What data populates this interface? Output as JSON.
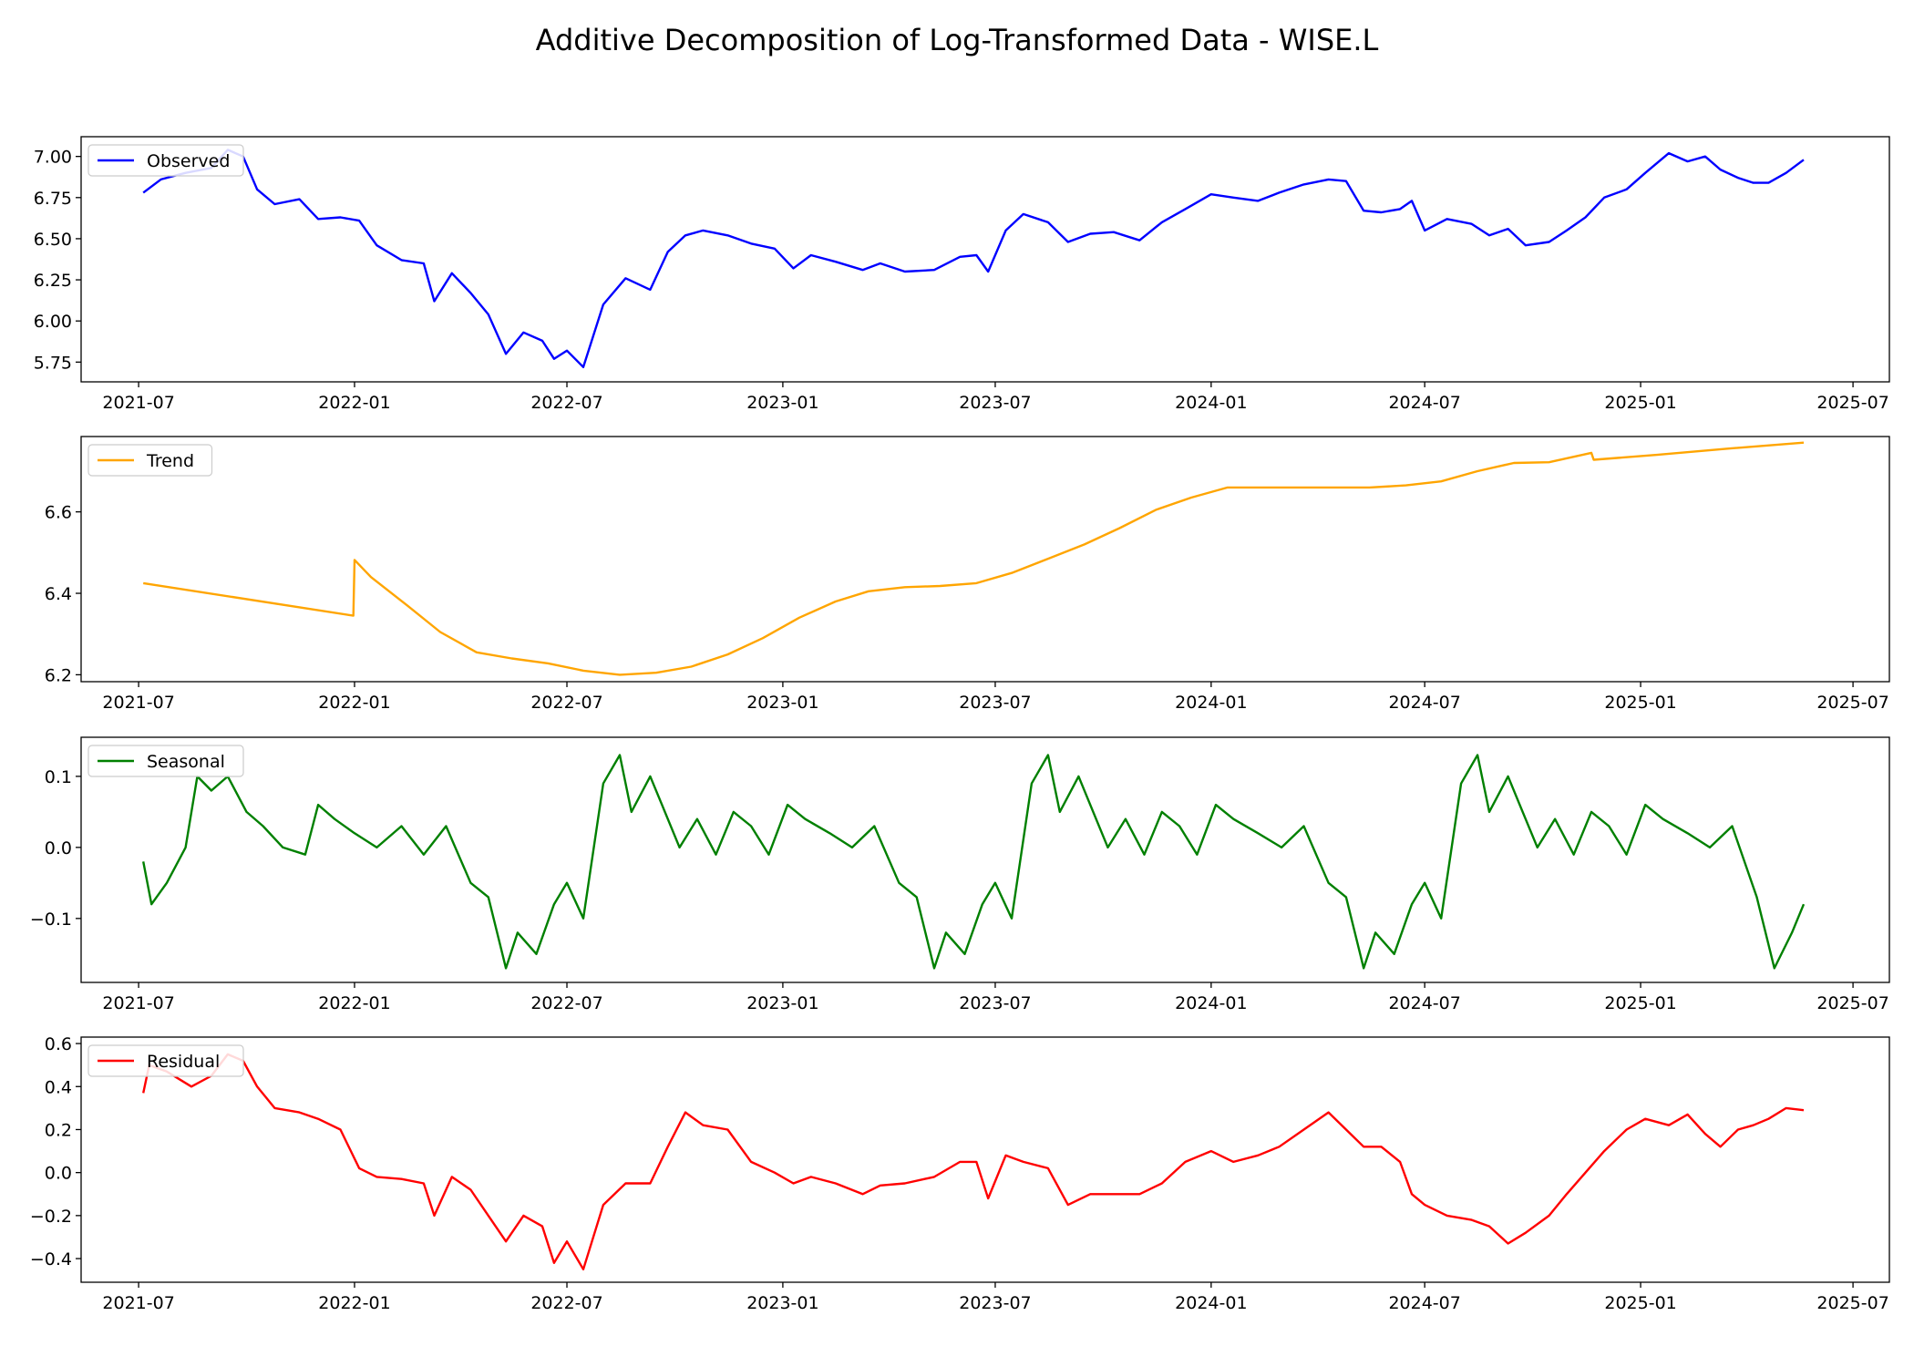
{
  "title": "Additive Decomposition of Log-Transformed Data - WISE.L",
  "chart_data": [
    {
      "type": "line",
      "legend": "Observed",
      "legend_position": "upper left",
      "color": "#0000ff",
      "ylim": [
        5.63,
        7.12
      ],
      "yticks": [
        5.75,
        6.0,
        6.25,
        6.5,
        6.75,
        7.0
      ],
      "ytick_labels": [
        "5.75",
        "6.00",
        "6.25",
        "6.50",
        "6.75",
        "7.00"
      ],
      "x": [
        "2021-07-05",
        "2021-07-20",
        "2021-08-10",
        "2021-09-01",
        "2021-09-15",
        "2021-09-28",
        "2021-10-10",
        "2021-10-25",
        "2021-11-15",
        "2021-12-01",
        "2021-12-20",
        "2022-01-05",
        "2022-01-20",
        "2022-02-10",
        "2022-03-01",
        "2022-03-10",
        "2022-03-25",
        "2022-04-10",
        "2022-04-25",
        "2022-05-10",
        "2022-05-25",
        "2022-06-10",
        "2022-06-20",
        "2022-07-01",
        "2022-07-15",
        "2022-08-01",
        "2022-08-20",
        "2022-09-10",
        "2022-09-25",
        "2022-10-10",
        "2022-10-25",
        "2022-11-15",
        "2022-12-05",
        "2022-12-25",
        "2023-01-10",
        "2023-01-25",
        "2023-02-15",
        "2023-03-10",
        "2023-03-25",
        "2023-04-15",
        "2023-05-10",
        "2023-06-01",
        "2023-06-15",
        "2023-06-25",
        "2023-07-10",
        "2023-07-25",
        "2023-08-15",
        "2023-09-01",
        "2023-09-20",
        "2023-10-10",
        "2023-11-01",
        "2023-11-20",
        "2023-12-10",
        "2024-01-01",
        "2024-01-20",
        "2024-02-10",
        "2024-02-28",
        "2024-03-20",
        "2024-04-10",
        "2024-04-25",
        "2024-05-10",
        "2024-05-25",
        "2024-06-10",
        "2024-06-20",
        "2024-07-01",
        "2024-07-20",
        "2024-08-10",
        "2024-08-25",
        "2024-09-10",
        "2024-09-25",
        "2024-10-15",
        "2024-10-30",
        "2024-11-15",
        "2024-12-01",
        "2024-12-20",
        "2025-01-05",
        "2025-01-25",
        "2025-02-10",
        "2025-02-25",
        "2025-03-10",
        "2025-03-25",
        "2025-04-07",
        "2025-04-20",
        "2025-05-05",
        "2025-05-20"
      ],
      "values": [
        6.78,
        6.86,
        6.9,
        6.93,
        7.04,
        7.0,
        6.8,
        6.71,
        6.74,
        6.62,
        6.63,
        6.61,
        6.46,
        6.37,
        6.35,
        6.12,
        6.29,
        6.17,
        6.04,
        5.8,
        5.93,
        5.88,
        5.77,
        5.82,
        5.72,
        6.1,
        6.26,
        6.19,
        6.42,
        6.52,
        6.55,
        6.52,
        6.47,
        6.44,
        6.32,
        6.4,
        6.36,
        6.31,
        6.35,
        6.3,
        6.31,
        6.39,
        6.4,
        6.3,
        6.55,
        6.65,
        6.6,
        6.48,
        6.53,
        6.54,
        6.49,
        6.6,
        6.68,
        6.77,
        6.75,
        6.73,
        6.78,
        6.83,
        6.86,
        6.85,
        6.67,
        6.66,
        6.68,
        6.73,
        6.55,
        6.62,
        6.59,
        6.52,
        6.56,
        6.46,
        6.48,
        6.55,
        6.63,
        6.75,
        6.8,
        6.9,
        7.02,
        6.97,
        7.0,
        6.92,
        6.87,
        6.84,
        6.84,
        6.9,
        6.98
      ]
    },
    {
      "type": "line",
      "legend": "Trend",
      "legend_position": "upper left",
      "color": "#ffa500",
      "ylim": [
        6.183,
        6.785
      ],
      "yticks": [
        6.2,
        6.4,
        6.6
      ],
      "ytick_labels": [
        "6.2",
        "6.4",
        "6.6"
      ],
      "x": [
        "2021-07-05",
        "2021-12-31",
        "2022-01-01",
        "2022-01-15",
        "2022-02-15",
        "2022-03-15",
        "2022-04-15",
        "2022-05-15",
        "2022-06-15",
        "2022-07-15",
        "2022-08-15",
        "2022-09-15",
        "2022-10-15",
        "2022-11-15",
        "2022-12-15",
        "2023-01-15",
        "2023-02-15",
        "2023-03-15",
        "2023-04-15",
        "2023-05-15",
        "2023-06-15",
        "2023-07-15",
        "2023-08-15",
        "2023-09-15",
        "2023-10-15",
        "2023-11-15",
        "2023-12-15",
        "2024-01-15",
        "2024-02-15",
        "2024-03-15",
        "2024-04-15",
        "2024-05-15",
        "2024-06-15",
        "2024-07-15",
        "2024-08-15",
        "2024-09-15",
        "2024-10-15",
        "2024-11-20",
        "2024-11-22",
        "2025-01-15",
        "2025-03-15",
        "2025-05-20"
      ],
      "values": [
        6.425,
        6.345,
        6.482,
        6.44,
        6.37,
        6.305,
        6.255,
        6.24,
        6.228,
        6.21,
        6.2,
        6.205,
        6.22,
        6.25,
        6.29,
        6.34,
        6.38,
        6.405,
        6.415,
        6.418,
        6.425,
        6.45,
        6.485,
        6.52,
        6.56,
        6.605,
        6.635,
        6.66,
        6.66,
        6.66,
        6.66,
        6.66,
        6.665,
        6.675,
        6.7,
        6.72,
        6.722,
        6.745,
        6.728,
        6.74,
        6.755,
        6.77
      ]
    },
    {
      "type": "line",
      "legend": "Seasonal",
      "legend_position": "upper left",
      "color": "#008000",
      "ylim": [
        -0.19,
        0.155
      ],
      "yticks": [
        -0.1,
        0.0,
        0.1
      ],
      "ytick_labels": [
        "−0.1",
        "0.0",
        "0.1"
      ],
      "x": [
        "2021-07-05",
        "2021-07-12",
        "2021-07-25",
        "2021-08-10",
        "2021-08-20",
        "2021-09-01",
        "2021-09-15",
        "2021-10-01",
        "2021-10-15",
        "2021-11-01",
        "2021-11-20",
        "2021-12-01",
        "2021-12-15",
        "2022-01-01",
        "2022-01-20",
        "2022-02-10",
        "2022-03-01",
        "2022-03-20",
        "2022-04-10",
        "2022-04-25",
        "2022-05-10",
        "2022-05-20",
        "2022-06-05",
        "2022-06-20",
        "2022-07-01",
        "2022-07-15",
        "2022-08-01",
        "2022-08-15",
        "2022-08-25",
        "2022-09-10",
        "2022-09-20",
        "2022-10-05",
        "2022-10-20",
        "2022-11-05",
        "2022-11-20",
        "2022-12-05",
        "2022-12-20",
        "2023-01-05",
        "2023-01-20",
        "2023-02-10",
        "2023-03-01",
        "2023-03-20",
        "2023-04-10",
        "2023-04-25",
        "2023-05-10",
        "2023-05-20",
        "2023-06-05",
        "2023-06-20",
        "2023-07-01",
        "2023-07-15",
        "2023-08-01",
        "2023-08-15",
        "2023-08-25",
        "2023-09-10",
        "2023-09-20",
        "2023-10-05",
        "2023-10-20",
        "2023-11-05",
        "2023-11-20",
        "2023-12-05",
        "2023-12-20",
        "2024-01-05",
        "2024-01-20",
        "2024-02-10",
        "2024-03-01",
        "2024-03-20",
        "2024-04-10",
        "2024-04-25",
        "2024-05-10",
        "2024-05-20",
        "2024-06-05",
        "2024-06-20",
        "2024-07-01",
        "2024-07-15",
        "2024-08-01",
        "2024-08-15",
        "2024-08-25",
        "2024-09-10",
        "2024-09-20",
        "2024-10-05",
        "2024-10-20",
        "2024-11-05",
        "2024-11-20",
        "2024-12-05",
        "2024-12-20",
        "2025-01-05",
        "2025-01-20",
        "2025-02-10",
        "2025-03-01",
        "2025-03-20",
        "2025-04-10",
        "2025-04-25",
        "2025-05-10",
        "2025-05-20"
      ],
      "values": [
        -0.02,
        -0.08,
        -0.05,
        0.0,
        0.1,
        0.08,
        0.1,
        0.05,
        0.03,
        0.0,
        -0.01,
        0.06,
        0.04,
        0.02,
        0.0,
        0.03,
        -0.01,
        0.03,
        -0.05,
        -0.07,
        -0.17,
        -0.12,
        -0.15,
        -0.08,
        -0.05,
        -0.1,
        0.09,
        0.13,
        0.05,
        0.1,
        0.06,
        0.0,
        0.04,
        -0.01,
        0.05,
        0.03,
        -0.01,
        0.06,
        0.04,
        0.02,
        0.0,
        0.03,
        -0.05,
        -0.07,
        -0.17,
        -0.12,
        -0.15,
        -0.08,
        -0.05,
        -0.1,
        0.09,
        0.13,
        0.05,
        0.1,
        0.06,
        0.0,
        0.04,
        -0.01,
        0.05,
        0.03,
        -0.01,
        0.06,
        0.04,
        0.02,
        0.0,
        0.03,
        -0.05,
        -0.07,
        -0.17,
        -0.12,
        -0.15,
        -0.08,
        -0.05,
        -0.1,
        0.09,
        0.13,
        0.05,
        0.1,
        0.06,
        0.0,
        0.04,
        -0.01,
        0.05,
        0.03,
        -0.01,
        0.06,
        0.04,
        0.02,
        0.0,
        0.03,
        -0.07,
        -0.17,
        -0.12,
        -0.08
      ]
    },
    {
      "type": "line",
      "legend": "Residual",
      "legend_position": "upper left",
      "color": "#ff0000",
      "ylim": [
        -0.51,
        0.63
      ],
      "yticks": [
        -0.4,
        -0.2,
        0.0,
        0.2,
        0.4,
        0.6
      ],
      "ytick_labels": [
        "−0.4",
        "−0.2",
        "0.0",
        "0.2",
        "0.4",
        "0.6"
      ],
      "x": [
        "2021-07-05",
        "2021-07-10",
        "2021-07-25",
        "2021-08-15",
        "2021-09-01",
        "2021-09-15",
        "2021-09-28",
        "2021-10-10",
        "2021-10-25",
        "2021-11-15",
        "2021-12-01",
        "2021-12-20",
        "2022-01-05",
        "2022-01-20",
        "2022-02-10",
        "2022-03-01",
        "2022-03-10",
        "2022-03-25",
        "2022-04-10",
        "2022-04-25",
        "2022-05-10",
        "2022-05-25",
        "2022-06-10",
        "2022-06-20",
        "2022-07-01",
        "2022-07-15",
        "2022-08-01",
        "2022-08-20",
        "2022-09-10",
        "2022-09-25",
        "2022-10-10",
        "2022-10-25",
        "2022-11-15",
        "2022-12-05",
        "2022-12-25",
        "2023-01-10",
        "2023-01-25",
        "2023-02-15",
        "2023-03-10",
        "2023-03-25",
        "2023-04-15",
        "2023-05-10",
        "2023-06-01",
        "2023-06-15",
        "2023-06-25",
        "2023-07-10",
        "2023-07-25",
        "2023-08-15",
        "2023-09-01",
        "2023-09-20",
        "2023-10-10",
        "2023-11-01",
        "2023-11-20",
        "2023-12-10",
        "2024-01-01",
        "2024-01-20",
        "2024-02-10",
        "2024-02-28",
        "2024-03-20",
        "2024-04-10",
        "2024-04-25",
        "2024-05-10",
        "2024-05-25",
        "2024-06-10",
        "2024-06-20",
        "2024-07-01",
        "2024-07-20",
        "2024-08-10",
        "2024-08-25",
        "2024-09-10",
        "2024-09-25",
        "2024-10-15",
        "2024-10-30",
        "2024-11-15",
        "2024-12-01",
        "2024-12-20",
        "2025-01-05",
        "2025-01-25",
        "2025-02-10",
        "2025-02-25",
        "2025-03-10",
        "2025-03-25",
        "2025-04-07",
        "2025-04-20",
        "2025-05-05",
        "2025-05-20"
      ],
      "values": [
        0.37,
        0.5,
        0.47,
        0.4,
        0.45,
        0.55,
        0.52,
        0.4,
        0.3,
        0.28,
        0.25,
        0.2,
        0.02,
        -0.02,
        -0.03,
        -0.05,
        -0.2,
        -0.02,
        -0.08,
        -0.2,
        -0.32,
        -0.2,
        -0.25,
        -0.42,
        -0.32,
        -0.45,
        -0.15,
        -0.05,
        -0.05,
        0.12,
        0.28,
        0.22,
        0.2,
        0.05,
        0.0,
        -0.05,
        -0.02,
        -0.05,
        -0.1,
        -0.06,
        -0.05,
        -0.02,
        0.05,
        0.05,
        -0.12,
        0.08,
        0.05,
        0.02,
        -0.15,
        -0.1,
        -0.1,
        -0.1,
        -0.05,
        0.05,
        0.1,
        0.05,
        0.08,
        0.12,
        0.2,
        0.28,
        0.2,
        0.12,
        0.12,
        0.05,
        -0.1,
        -0.15,
        -0.2,
        -0.22,
        -0.25,
        -0.33,
        -0.28,
        -0.2,
        -0.1,
        0.0,
        0.1,
        0.2,
        0.25,
        0.22,
        0.27,
        0.18,
        0.12,
        0.2,
        0.22,
        0.25,
        0.3,
        0.29
      ]
    }
  ],
  "x_axis": {
    "ticks": [
      "2021-07-01",
      "2022-01-01",
      "2022-07-01",
      "2023-01-01",
      "2023-07-01",
      "2024-01-01",
      "2024-07-01",
      "2025-01-01",
      "2025-07-01"
    ],
    "tick_labels": [
      "2021-07",
      "2022-01",
      "2022-07",
      "2023-01",
      "2023-07",
      "2024-01",
      "2024-07",
      "2025-01",
      "2025-07"
    ],
    "xlim": [
      "2021-05-13",
      "2025-08-01"
    ]
  }
}
